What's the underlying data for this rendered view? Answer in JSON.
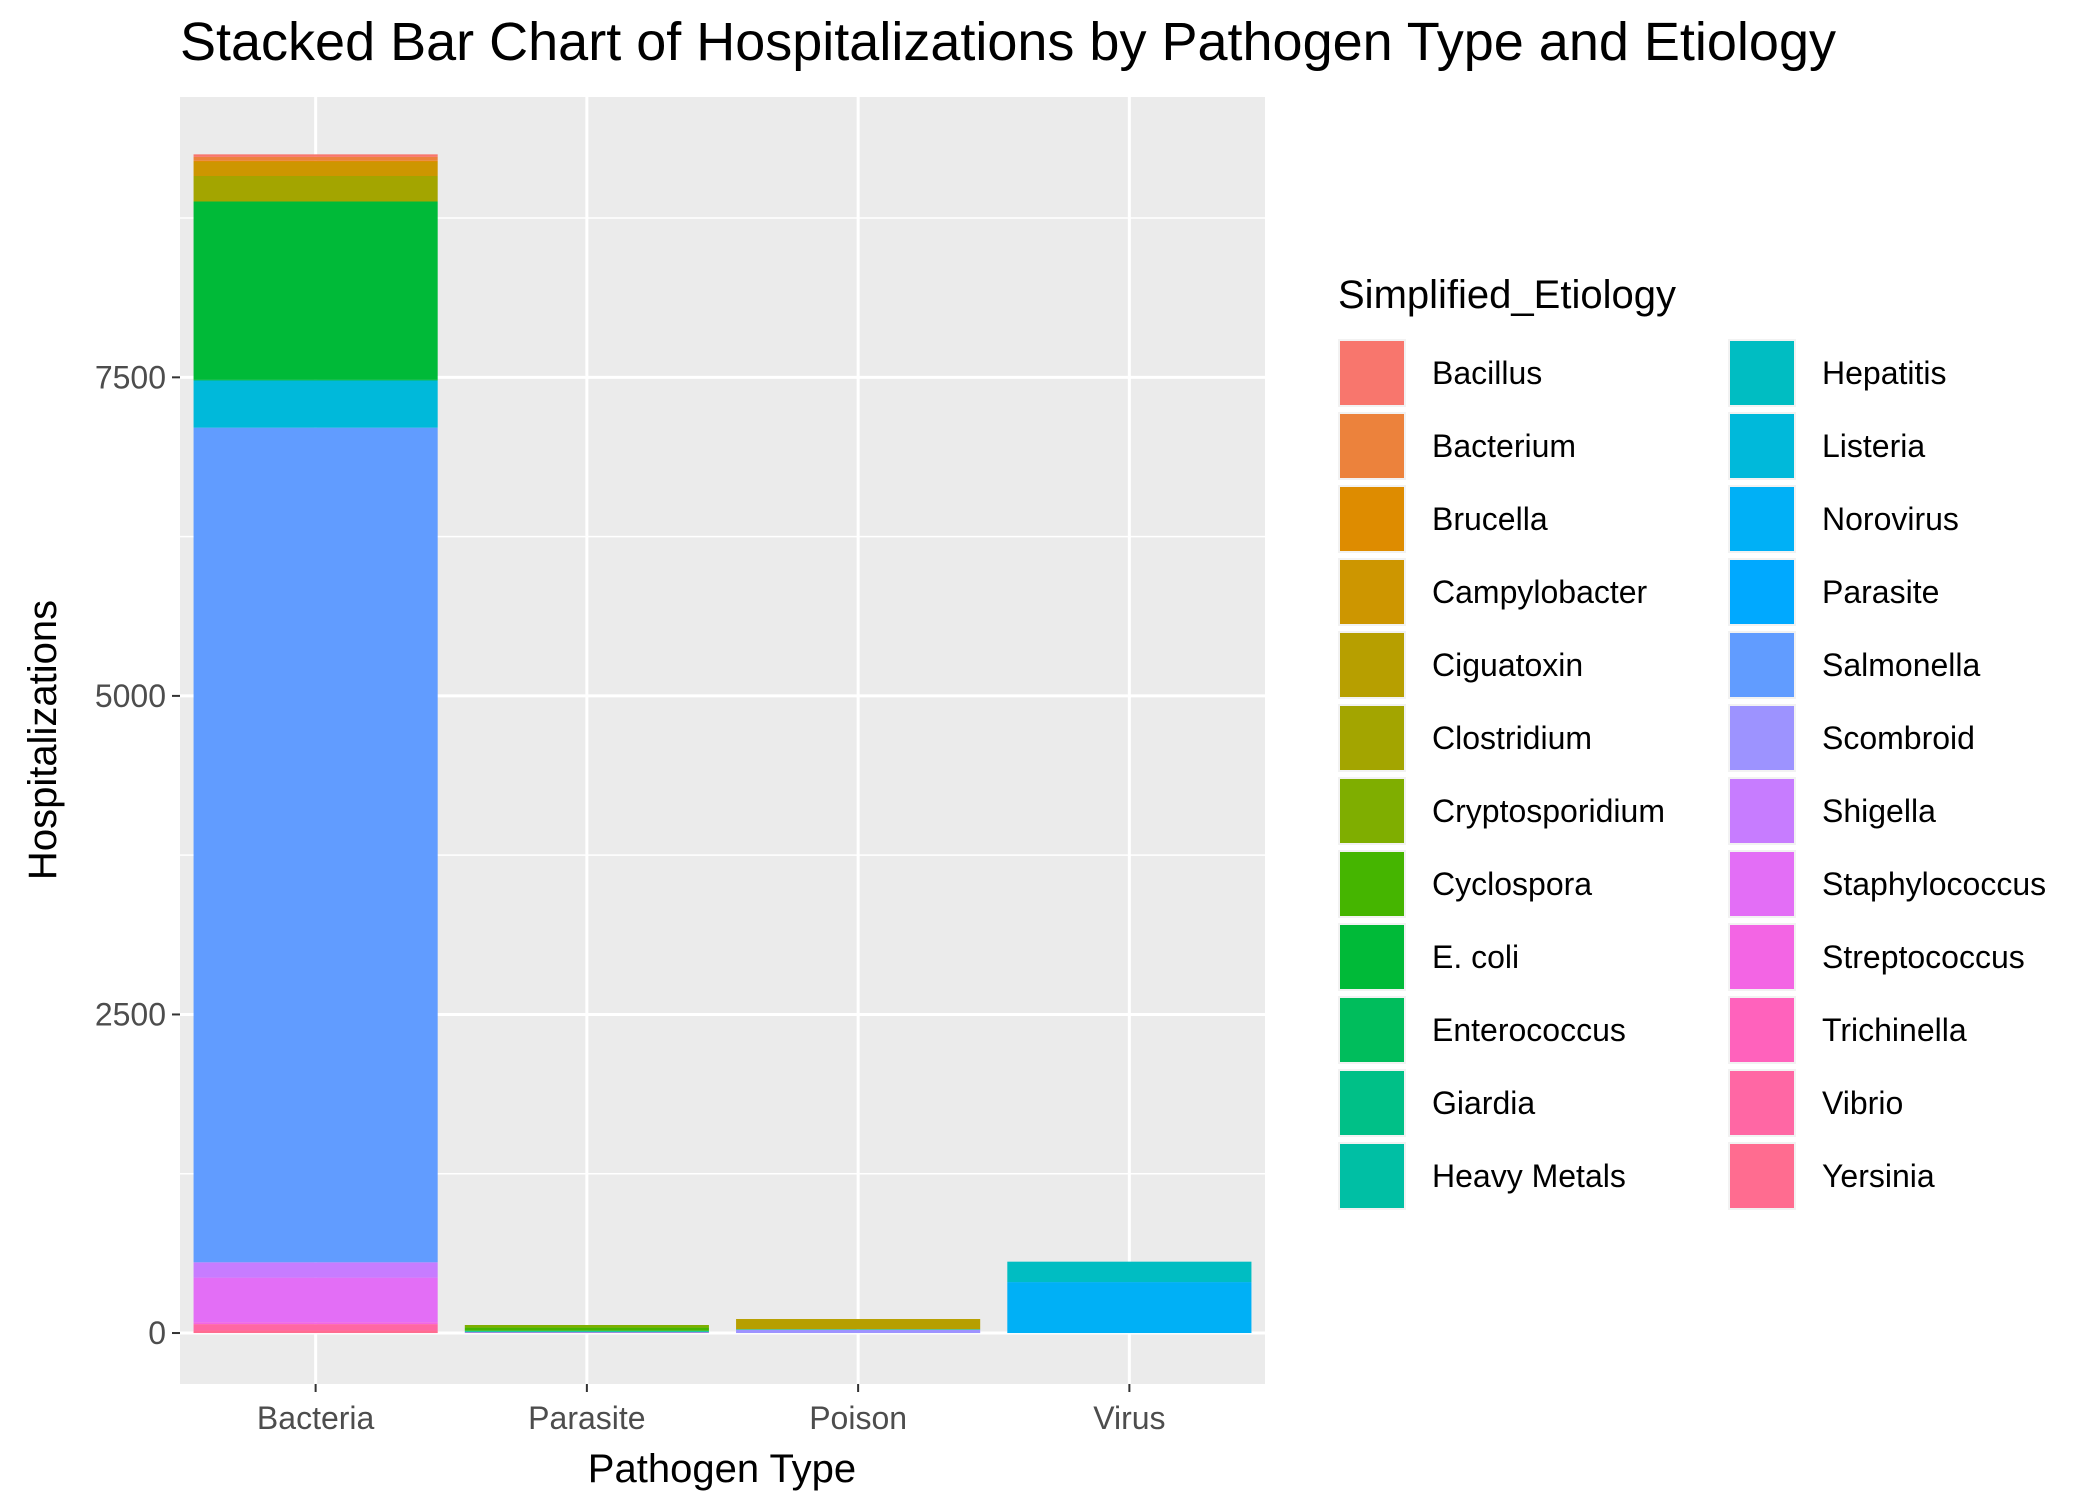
{
  "chart_data": {
    "type": "bar",
    "stacked": true,
    "title": "Stacked Bar Chart of Hospitalizations by Pathogen Type and Etiology",
    "xlabel": "Pathogen Type",
    "ylabel": "Hospitalizations",
    "categories": [
      "Bacteria",
      "Parasite",
      "Poison",
      "Virus"
    ],
    "ylim": [
      -400,
      9700
    ],
    "yticks": [
      0,
      2500,
      5000,
      7500
    ],
    "grid": true,
    "legend": {
      "title": "Simplified_Etiology",
      "placement": "right",
      "columns": 2
    },
    "series": [
      {
        "name": "Bacillus",
        "color": "#F8766D",
        "values": [
          20,
          0,
          0,
          0
        ]
      },
      {
        "name": "Bacterium",
        "color": "#EC823C",
        "values": [
          30,
          0,
          0,
          0
        ]
      },
      {
        "name": "Brucella",
        "color": "#DE8C00",
        "values": [
          10,
          0,
          0,
          0
        ]
      },
      {
        "name": "Campylobacter",
        "color": "#CD9600",
        "values": [
          110,
          0,
          0,
          0
        ]
      },
      {
        "name": "Ciguatoxin",
        "color": "#B79F00",
        "values": [
          0,
          0,
          80,
          0
        ]
      },
      {
        "name": "Clostridium",
        "color": "#A3A500",
        "values": [
          200,
          0,
          0,
          0
        ]
      },
      {
        "name": "Cryptosporidium",
        "color": "#7FAE00",
        "values": [
          0,
          20,
          0,
          0
        ]
      },
      {
        "name": "Cyclospora",
        "color": "#45B500",
        "values": [
          0,
          25,
          0,
          0
        ]
      },
      {
        "name": "E. coli",
        "color": "#00BA38",
        "values": [
          1400,
          0,
          0,
          0
        ]
      },
      {
        "name": "Enterococcus",
        "color": "#00BD5C",
        "values": [
          5,
          0,
          0,
          0
        ]
      },
      {
        "name": "Giardia",
        "color": "#00C087",
        "values": [
          0,
          8,
          0,
          0
        ]
      },
      {
        "name": "Heavy Metals",
        "color": "#00BFA4",
        "values": [
          0,
          0,
          5,
          0
        ]
      },
      {
        "name": "Hepatitis",
        "color": "#00BDC2",
        "values": [
          0,
          0,
          0,
          160
        ]
      },
      {
        "name": "Listeria",
        "color": "#00B9DA",
        "values": [
          370,
          0,
          0,
          0
        ]
      },
      {
        "name": "Norovirus",
        "color": "#00B0F6",
        "values": [
          0,
          0,
          0,
          400
        ]
      },
      {
        "name": "Parasite",
        "color": "#00A9FF",
        "values": [
          0,
          5,
          0,
          0
        ]
      },
      {
        "name": "Salmonella",
        "color": "#619CFF",
        "values": [
          6550,
          0,
          0,
          0
        ]
      },
      {
        "name": "Scombroid",
        "color": "#9D93FF",
        "values": [
          0,
          0,
          25,
          0
        ]
      },
      {
        "name": "Shigella",
        "color": "#C77CFF",
        "values": [
          120,
          0,
          0,
          0
        ]
      },
      {
        "name": "Staphylococcus",
        "color": "#E36EF6",
        "values": [
          350,
          0,
          0,
          0
        ]
      },
      {
        "name": "Streptococcus",
        "color": "#F365E4",
        "values": [
          15,
          0,
          0,
          0
        ]
      },
      {
        "name": "Trichinella",
        "color": "#FF62BC",
        "values": [
          0,
          5,
          0,
          0
        ]
      },
      {
        "name": "Vibrio",
        "color": "#FF67A4",
        "values": [
          50,
          0,
          0,
          0
        ]
      },
      {
        "name": "Yersinia",
        "color": "#FF6C90",
        "values": [
          20,
          0,
          0,
          0
        ]
      }
    ]
  }
}
